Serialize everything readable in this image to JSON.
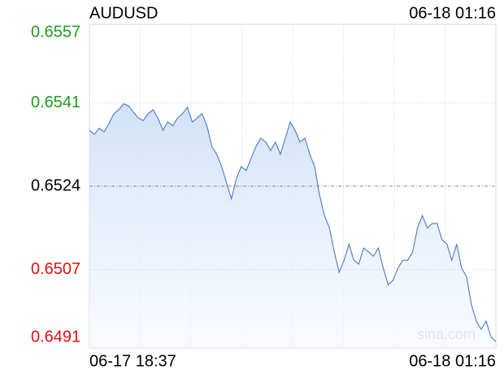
{
  "chart_data": {
    "type": "line",
    "title": "AUDUSD",
    "timestamp": "06-18 01:16",
    "watermark": "sina.com",
    "categories": [
      "06-17 18:37",
      null,
      null,
      null,
      null,
      null,
      null,
      null,
      null,
      null,
      null,
      null,
      null,
      null,
      null,
      null,
      null,
      null,
      null,
      null,
      null,
      null,
      null,
      null,
      null,
      null,
      null,
      null,
      null,
      null,
      null,
      null,
      null,
      null,
      null,
      null,
      null,
      null,
      null,
      null,
      null,
      null,
      null,
      null,
      null,
      null,
      null,
      null,
      null,
      null,
      null,
      null,
      null,
      null,
      null,
      null,
      null,
      null,
      null,
      null,
      null,
      null,
      null,
      null,
      null,
      null,
      null,
      null,
      null,
      null,
      null,
      null,
      null,
      null,
      null,
      null,
      null,
      null,
      null,
      null,
      null,
      null,
      null,
      "06-18 01:16"
    ],
    "values": [
      0.65354,
      0.65346,
      0.65358,
      0.65351,
      0.65368,
      0.65388,
      0.65396,
      0.65408,
      0.65404,
      0.65391,
      0.65379,
      0.65374,
      0.65388,
      0.65396,
      0.65379,
      0.65354,
      0.65371,
      0.65363,
      0.65379,
      0.65388,
      0.65401,
      0.65371,
      0.65379,
      0.65388,
      0.65363,
      0.65321,
      0.65305,
      0.6528,
      0.65247,
      0.65214,
      0.65255,
      0.6528,
      0.65272,
      0.65296,
      0.65321,
      0.65338,
      0.6533,
      0.65313,
      0.6533,
      0.65305,
      0.65338,
      0.65371,
      0.65354,
      0.6533,
      0.65338,
      0.65305,
      0.6528,
      0.65222,
      0.6518,
      0.65155,
      0.65106,
      0.65064,
      0.65089,
      0.65122,
      0.65089,
      0.65081,
      0.65114,
      0.65106,
      0.65097,
      0.65114,
      0.65073,
      0.65039,
      0.65048,
      0.65073,
      0.65089,
      0.65089,
      0.65106,
      0.65155,
      0.6518,
      0.65155,
      0.65164,
      0.65164,
      0.65131,
      0.65122,
      0.65089,
      0.65122,
      0.65073,
      0.65056,
      0.64998,
      0.64965,
      0.64948,
      0.64965,
      0.64932,
      0.64923
    ],
    "color": "#4a78c2",
    "reference_line": 0.6524,
    "up_color": "#1a9e1a",
    "down_color": "#e01010",
    "flat_color": "#000000",
    "ylim": [
      0.6491,
      0.6557
    ],
    "yticks": [
      0.6557,
      0.6541,
      0.6524,
      0.6507,
      0.6491
    ],
    "grid": true
  }
}
